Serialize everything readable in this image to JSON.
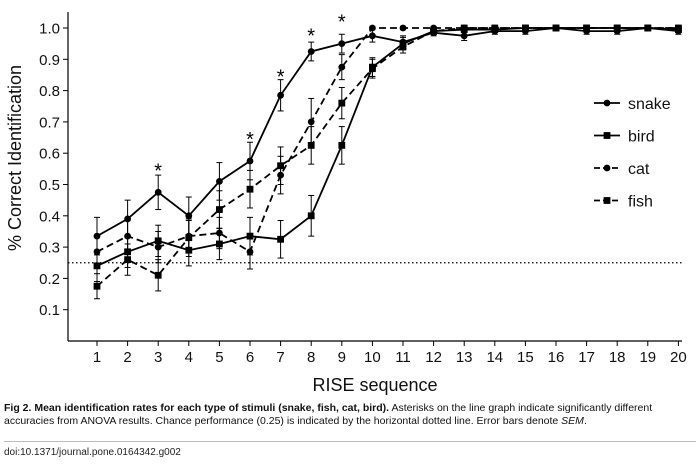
{
  "chart_data": {
    "type": "line",
    "title": "",
    "xlabel": "RISE sequence",
    "ylabel": "% Correct Identification",
    "x": [
      1,
      2,
      3,
      4,
      5,
      6,
      7,
      8,
      9,
      10,
      11,
      12,
      13,
      14,
      15,
      16,
      17,
      18,
      19,
      20
    ],
    "xlim": [
      0.5,
      20
    ],
    "ylim": [
      0,
      1.0
    ],
    "yticks": [
      "0.1",
      "0.2",
      "0.3",
      "0.4",
      "0.5",
      "0.6",
      "0.7",
      "0.8",
      "0.9",
      "1.0"
    ],
    "xticks": [
      "1",
      "2",
      "3",
      "4",
      "5",
      "6",
      "7",
      "8",
      "9",
      "10",
      "11",
      "12",
      "13",
      "14",
      "15",
      "16",
      "17",
      "18",
      "19",
      "20"
    ],
    "chance_level": 0.25,
    "legend_position": "right",
    "series": [
      {
        "name": "snake",
        "marker": "circle",
        "dash": "solid",
        "values": [
          0.335,
          0.39,
          0.475,
          0.4,
          0.51,
          0.575,
          0.785,
          0.925,
          0.95,
          0.975,
          0.955,
          0.985,
          0.975,
          0.99,
          0.99,
          1.0,
          0.99,
          0.99,
          1.0,
          0.99
        ],
        "errors": [
          0.06,
          0.06,
          0.055,
          0.06,
          0.06,
          0.06,
          0.05,
          0.03,
          0.03,
          0.02,
          0.02,
          0.01,
          0.015,
          0.01,
          0.01,
          0.005,
          0.01,
          0.01,
          0.005,
          0.01
        ]
      },
      {
        "name": "bird",
        "marker": "square",
        "dash": "solid",
        "values": [
          0.24,
          0.285,
          0.32,
          0.29,
          0.31,
          0.335,
          0.325,
          0.4,
          0.625,
          0.875,
          0.95,
          0.99,
          0.995,
          0.995,
          1.0,
          1.0,
          1.0,
          1.0,
          1.0,
          0.995
        ],
        "errors": [
          0.05,
          0.05,
          0.05,
          0.05,
          0.05,
          0.06,
          0.06,
          0.065,
          0.06,
          0.03,
          0.02,
          0.01,
          0.005,
          0.005,
          0.005,
          0.005,
          0.005,
          0.005,
          0.005,
          0.005
        ]
      },
      {
        "name": "cat",
        "marker": "circle",
        "dash": "dashed",
        "values": [
          0.285,
          0.335,
          0.3,
          0.335,
          0.345,
          0.285,
          0.53,
          0.7,
          0.875,
          1.0,
          1.0,
          1.0,
          1.0,
          1.0,
          1.0,
          1.0,
          1.0,
          1.0,
          1.0,
          1.0
        ],
        "errors": [
          0.05,
          0.05,
          0.05,
          0.05,
          0.05,
          0.055,
          0.06,
          0.075,
          0.04,
          0.005,
          0.005,
          0.005,
          0.005,
          0.005,
          0.005,
          0.005,
          0.005,
          0.005,
          0.005,
          0.005
        ]
      },
      {
        "name": "fish",
        "marker": "square",
        "dash": "dashed",
        "values": [
          0.175,
          0.26,
          0.21,
          0.33,
          0.42,
          0.485,
          0.56,
          0.625,
          0.76,
          0.87,
          0.94,
          0.99,
          1.0,
          1.0,
          1.0,
          1.0,
          1.0,
          1.0,
          1.0,
          1.0
        ],
        "errors": [
          0.04,
          0.05,
          0.05,
          0.06,
          0.06,
          0.06,
          0.06,
          0.06,
          0.05,
          0.03,
          0.02,
          0.01,
          0.005,
          0.005,
          0.005,
          0.005,
          0.005,
          0.005,
          0.005,
          0.005
        ]
      }
    ],
    "significance_markers": [
      {
        "x": 3,
        "y": 0.555,
        "label": "*"
      },
      {
        "x": 6,
        "y": 0.655,
        "label": "*"
      },
      {
        "x": 7,
        "y": 0.855,
        "label": "*"
      },
      {
        "x": 8,
        "y": 0.985,
        "label": "*"
      },
      {
        "x": 9,
        "y": 1.03,
        "label": "*"
      }
    ]
  },
  "caption": {
    "figure_label": "Fig 2.",
    "bold_title": "Mean identification rates for each type of stimuli (snake, fish, cat, bird).",
    "text_main": "Asterisks on the line graph indicate significantly different accuracies from ANOVA results. Chance performance (0.25) is indicated by the horizontal dotted line. Error bars denote",
    "text_italic": "SEM",
    "text_end": "."
  },
  "doi": "doi:10.1371/journal.pone.0164342.g002"
}
